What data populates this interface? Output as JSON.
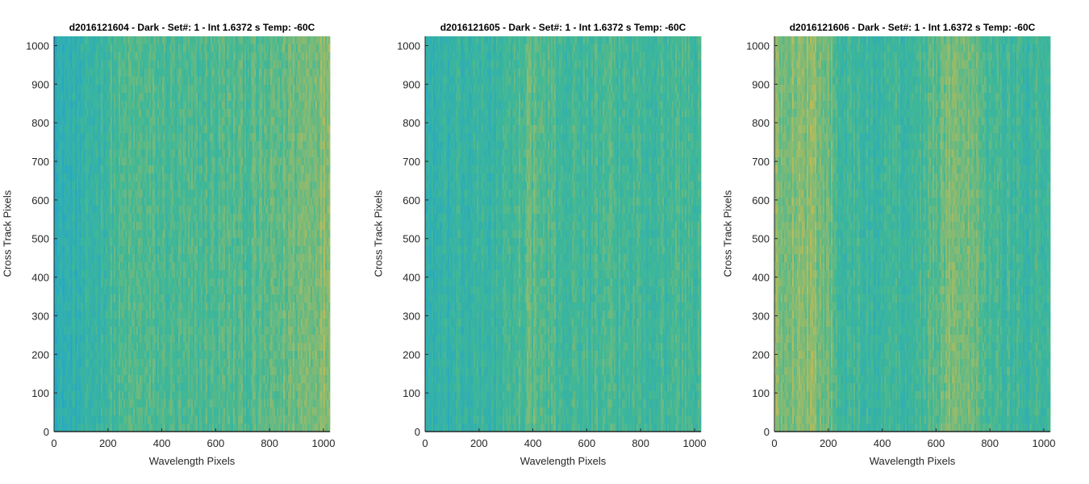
{
  "figure": {
    "chart_data": [
      {
        "type": "heatmap",
        "title": "d2016121604 - Dark - Set#: 1 - Int 1.6372 s Temp: -60C",
        "xlabel": "Wavelength Pixels",
        "ylabel": "Cross Track Pixels",
        "xlim": [
          0,
          1024
        ],
        "ylim": [
          0,
          1024
        ],
        "xticks": [
          0,
          200,
          400,
          600,
          800,
          1000
        ],
        "yticks": [
          0,
          100,
          200,
          300,
          400,
          500,
          600,
          700,
          800,
          900,
          1000
        ],
        "column_profile": [
          {
            "x": 0,
            "level": 0.25
          },
          {
            "x": 100,
            "level": 0.3
          },
          {
            "x": 200,
            "level": 0.48
          },
          {
            "x": 300,
            "level": 0.55
          },
          {
            "x": 400,
            "level": 0.52
          },
          {
            "x": 500,
            "level": 0.5
          },
          {
            "x": 600,
            "level": 0.55
          },
          {
            "x": 700,
            "level": 0.55
          },
          {
            "x": 800,
            "level": 0.58
          },
          {
            "x": 900,
            "level": 0.68
          },
          {
            "x": 1024,
            "level": 0.78
          }
        ]
      },
      {
        "type": "heatmap",
        "title": "d2016121605 - Dark - Set#: 1 - Int 1.6372 s Temp: -60C",
        "xlabel": "Wavelength Pixels",
        "ylabel": "Cross Track Pixels",
        "xlim": [
          0,
          1024
        ],
        "ylim": [
          0,
          1024
        ],
        "xticks": [
          0,
          200,
          400,
          600,
          800,
          1000
        ],
        "yticks": [
          0,
          100,
          200,
          300,
          400,
          500,
          600,
          700,
          800,
          900,
          1000
        ],
        "column_profile": [
          {
            "x": 0,
            "level": 0.32
          },
          {
            "x": 100,
            "level": 0.34
          },
          {
            "x": 200,
            "level": 0.38
          },
          {
            "x": 300,
            "level": 0.42
          },
          {
            "x": 380,
            "level": 0.62
          },
          {
            "x": 460,
            "level": 0.52
          },
          {
            "x": 550,
            "level": 0.48
          },
          {
            "x": 650,
            "level": 0.5
          },
          {
            "x": 750,
            "level": 0.48
          },
          {
            "x": 850,
            "level": 0.5
          },
          {
            "x": 950,
            "level": 0.5
          },
          {
            "x": 1024,
            "level": 0.48
          }
        ]
      },
      {
        "type": "heatmap",
        "title": "d2016121606 - Dark - Set#: 1 - Int 1.6372 s Temp: -60C",
        "xlabel": "Wavelength Pixels",
        "ylabel": "Cross Track Pixels",
        "xlim": [
          0,
          1024
        ],
        "ylim": [
          0,
          1024
        ],
        "xticks": [
          0,
          200,
          400,
          600,
          800,
          1000
        ],
        "yticks": [
          0,
          100,
          200,
          300,
          400,
          500,
          600,
          700,
          800,
          900,
          1000
        ],
        "column_profile": [
          {
            "x": 0,
            "level": 0.72
          },
          {
            "x": 100,
            "level": 0.78
          },
          {
            "x": 200,
            "level": 0.7
          },
          {
            "x": 260,
            "level": 0.45
          },
          {
            "x": 350,
            "level": 0.42
          },
          {
            "x": 450,
            "level": 0.45
          },
          {
            "x": 550,
            "level": 0.48
          },
          {
            "x": 650,
            "level": 0.72
          },
          {
            "x": 720,
            "level": 0.74
          },
          {
            "x": 800,
            "level": 0.52
          },
          {
            "x": 900,
            "level": 0.45
          },
          {
            "x": 1024,
            "level": 0.48
          }
        ]
      }
    ],
    "colors": {
      "low": "#1fa4d0",
      "mid": "#40b896",
      "high": "#c8bc52",
      "axis": "#262626"
    }
  }
}
